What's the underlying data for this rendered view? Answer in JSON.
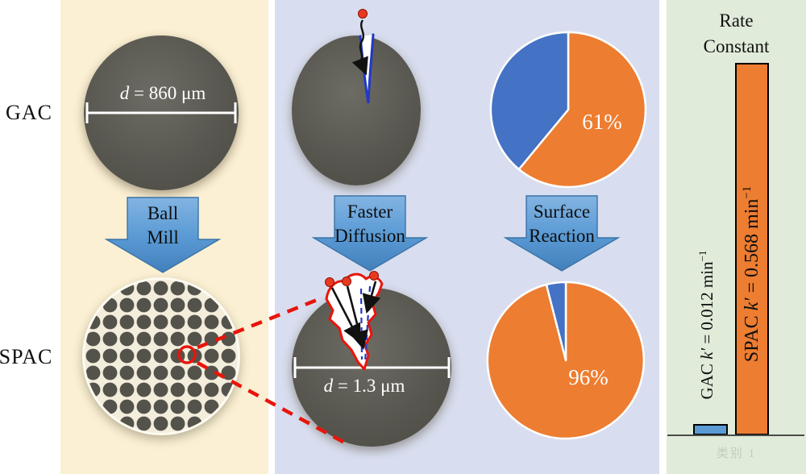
{
  "row_labels": {
    "gac": "GAC",
    "spac": "SPAC"
  },
  "left_panel": {
    "gac_diameter": {
      "var": "d",
      "rest": " = 860 μm"
    },
    "arrow": {
      "line1": "Ball",
      "line2": "Mill"
    }
  },
  "middle_panel": {
    "diffusion_arrow": {
      "line1": "Faster",
      "line2": "Diffusion"
    },
    "reaction_arrow": {
      "line1": "Surface",
      "line2": "Reaction"
    },
    "spac_diameter": {
      "var": "d",
      "rest": " = 1.3 μm"
    }
  },
  "right_panel": {
    "title_line1": "Rate",
    "title_line2": "Constant",
    "gac_bar_label": {
      "prefix": "GAC ",
      "var": "k′",
      "rest": " = 0.012 min",
      "sup": "−1"
    },
    "spac_bar_label": {
      "prefix": "SPAC ",
      "var": "k′",
      "rest": " = 0.568 min",
      "sup": "−1"
    },
    "axis_caption": "类别 1"
  },
  "colors": {
    "panel_cream": "#FBF0D3",
    "panel_blue": "#D8DEEF",
    "panel_green": "#E0EBD9",
    "arrow_blue": "#5B9BD5",
    "pie_orange": "#ED7D31",
    "pie_blue": "#4472C4",
    "bar_blue": "#5B9BD5",
    "bar_orange": "#ED7D31",
    "particle_gray": "#57564F",
    "annotation_red": "#E8150B",
    "pore_blue": "#2238C8"
  },
  "chart_data": [
    {
      "type": "pie",
      "id": "gac-surface-reaction-pie",
      "values": [
        61,
        39
      ],
      "slice_colors": [
        "#ED7D31",
        "#4472C4"
      ],
      "labels_shown": [
        "61%"
      ],
      "start_angle_deg": 0,
      "direction": "clockwise"
    },
    {
      "type": "pie",
      "id": "spac-surface-reaction-pie",
      "values": [
        96,
        4
      ],
      "slice_colors": [
        "#ED7D31",
        "#4472C4"
      ],
      "labels_shown": [
        "96%"
      ],
      "start_angle_deg": 0,
      "direction": "clockwise"
    },
    {
      "type": "bar",
      "id": "rate-constant-chart",
      "title": "Rate Constant",
      "categories": [
        "GAC",
        "SPAC"
      ],
      "values": [
        0.012,
        0.568
      ],
      "unit": "min⁻¹",
      "bar_colors": [
        "#5B9BD5",
        "#ED7D31"
      ],
      "bar_labels": [
        "GAC k′ = 0.012 min⁻¹",
        "SPAC k′ = 0.568 min⁻¹"
      ],
      "x_axis_caption": "类别 1",
      "ylim": [
        0,
        0.568
      ]
    }
  ]
}
